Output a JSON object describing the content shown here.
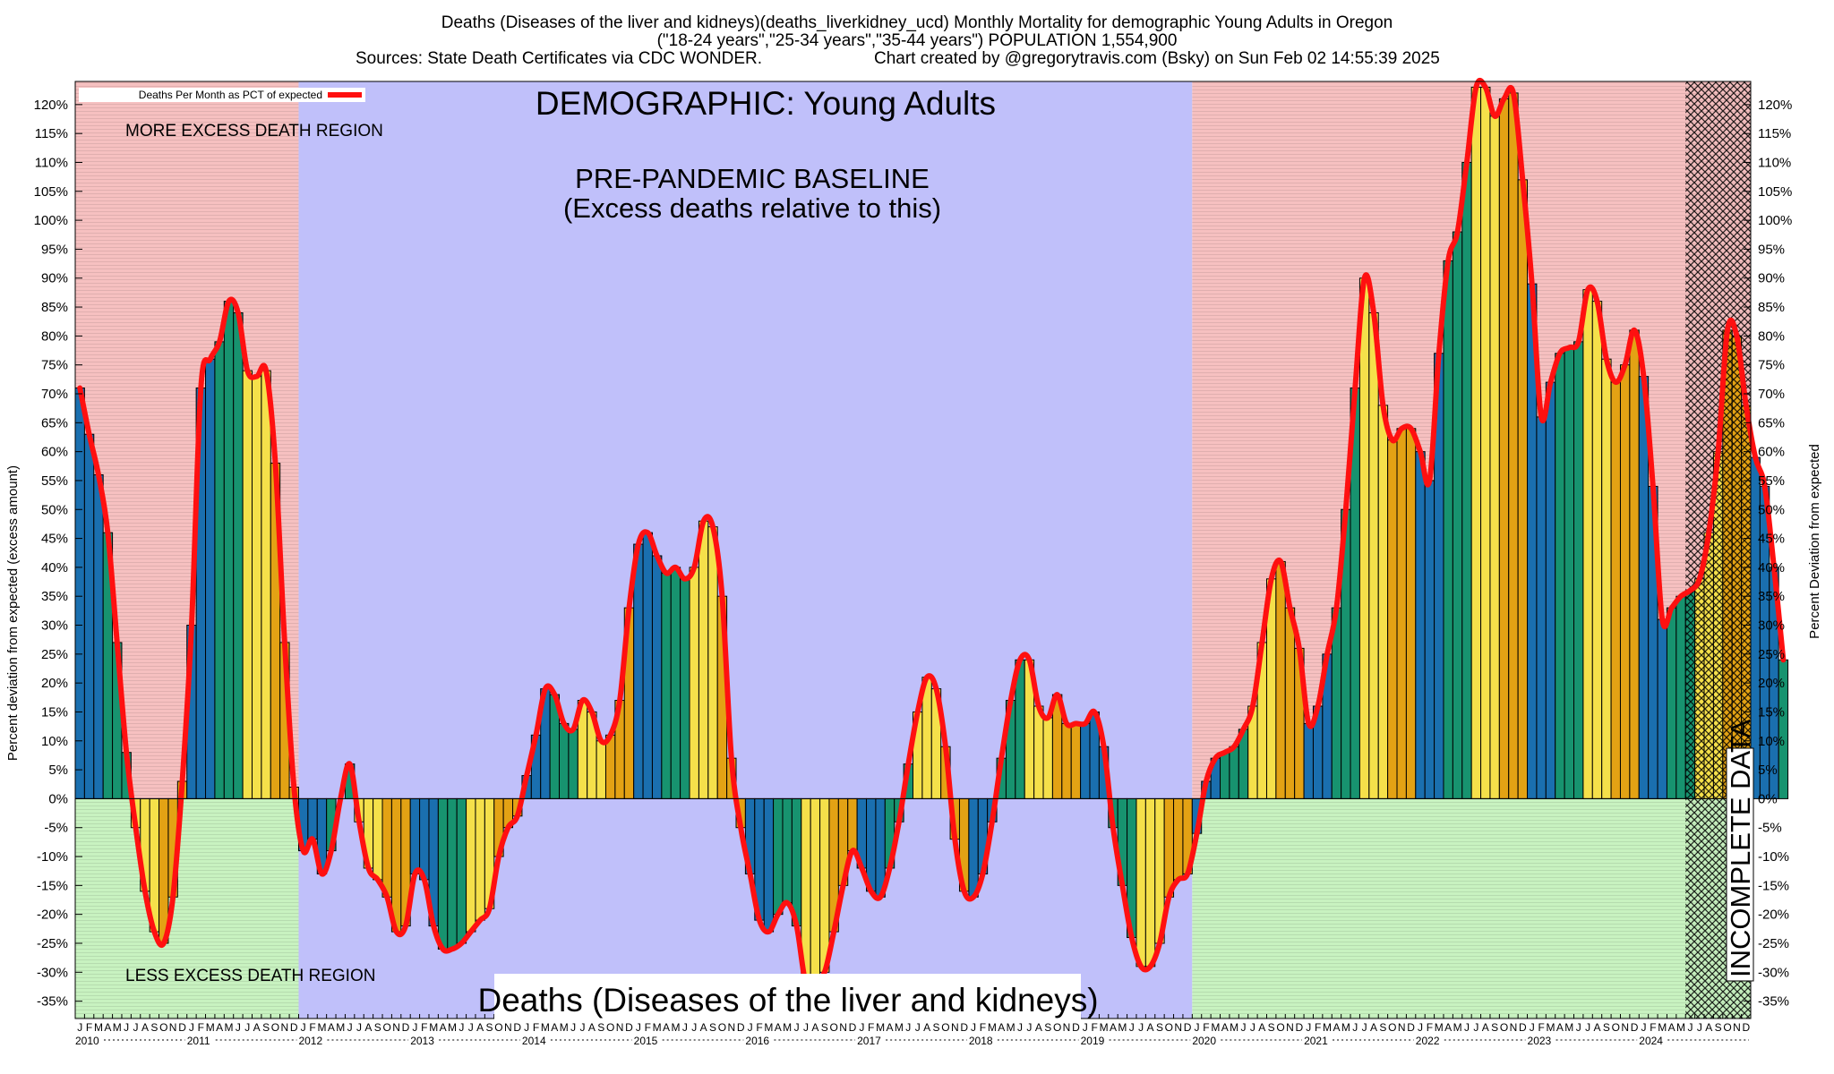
{
  "header": {
    "title_line1": "Deaths (Diseases of the liver and kidneys)(deaths_liverkidney_ucd) Monthly Mortality for demographic Young Adults in Oregon",
    "title_line2": "(\"18-24 years\",\"25-34 years\",\"35-44 years\") POPULATION 1,554,900",
    "title_line3_left": "Sources: State Death Certificates via CDC WONDER.",
    "title_line3_right": "Chart created by @gregorytravis.com (Bsky) on Sun Feb 02 14:55:39 2025"
  },
  "annotations": {
    "demographic": "DEMOGRAPHIC: Young Adults",
    "baseline_line1": "PRE-PANDEMIC BASELINE",
    "baseline_line2": "(Excess deaths relative to this)",
    "more_excess": "MORE EXCESS DEATH REGION",
    "less_excess": "LESS EXCESS DEATH REGION",
    "cause": "Deaths (Diseases of the liver and kidneys)",
    "incomplete": "INCOMPLETE DATA"
  },
  "colors": {
    "excess_region": "#f6c0c0",
    "less_region": "#c8f2c0",
    "baseline_region": "#c0c0fa",
    "incomplete_hatch": "#000000",
    "line": "#ff1010",
    "bar_q1": "#1a6faf",
    "bar_q2": "#17936f",
    "bar_q3": "#f5e04a",
    "bar_q4": "#e3a214"
  },
  "chart_data": {
    "type": "bar",
    "series_name": "Deaths Per Month as PCT of expected",
    "ylabel_left": "Percent deviation from expected (excess amount)",
    "ylabel_right": "Percent Deviation from expected",
    "ylim": [
      -38,
      124
    ],
    "yticks": [
      "-35%",
      "-30%",
      "-25%",
      "-20%",
      "-15%",
      "-10%",
      "-5%",
      "0%",
      "5%",
      "10%",
      "15%",
      "20%",
      "25%",
      "30%",
      "35%",
      "40%",
      "45%",
      "50%",
      "55%",
      "60%",
      "65%",
      "70%",
      "75%",
      "80%",
      "85%",
      "90%",
      "95%",
      "100%",
      "105%",
      "110%",
      "115%",
      "120%"
    ],
    "month_letters": [
      "J",
      "F",
      "M",
      "A",
      "M",
      "J",
      "J",
      "A",
      "S",
      "O",
      "N",
      "D"
    ],
    "years": [
      "2010",
      "2011",
      "2012",
      "2013",
      "2014",
      "2015",
      "2016",
      "2017",
      "2018",
      "2019",
      "2020",
      "2021",
      "2022",
      "2023",
      "2024"
    ],
    "start": "2010-01",
    "baseline_period": [
      "2012-01",
      "2019-12"
    ],
    "incomplete_from": "2024-06",
    "legend": "top-left",
    "values": [
      71,
      63,
      56,
      46,
      27,
      8,
      -5,
      -16,
      -23,
      -25,
      -17,
      3,
      30,
      71,
      76,
      79,
      86,
      84,
      74,
      73,
      74,
      58,
      27,
      2,
      -9,
      -7,
      -13,
      -9,
      0,
      6,
      -4,
      -12,
      -14,
      -17,
      -23,
      -22,
      -13,
      -14,
      -22,
      -26,
      -26,
      -25,
      -23,
      -21,
      -19,
      -10,
      -5,
      -3,
      4,
      11,
      19,
      18,
      13,
      12,
      17,
      15,
      10,
      11,
      17,
      33,
      44,
      46,
      42,
      39,
      40,
      38,
      40,
      48,
      47,
      35,
      7,
      -5,
      -13,
      -21,
      -23,
      -20,
      -18,
      -22,
      -32,
      -31,
      -30,
      -23,
      -15,
      -9,
      -12,
      -16,
      -17,
      -12,
      -4,
      6,
      15,
      21,
      19,
      9,
      -7,
      -16,
      -17,
      -13,
      -4,
      7,
      17,
      24,
      24,
      16,
      14,
      18,
      13,
      13,
      13,
      15,
      9,
      -5,
      -15,
      -24,
      -29,
      -29,
      -25,
      -17,
      -14,
      -13,
      -6,
      3,
      7,
      8,
      9,
      12,
      16,
      27,
      38,
      41,
      33,
      26,
      13,
      16,
      25,
      33,
      50,
      71,
      90,
      84,
      68,
      62,
      64,
      64,
      60,
      55,
      77,
      93,
      98,
      110,
      123,
      123,
      118,
      121,
      122,
      107,
      89,
      66,
      72,
      77,
      78,
      79,
      88,
      86,
      76,
      72,
      75,
      81,
      73,
      54,
      31,
      33,
      35,
      36,
      38,
      46,
      60,
      81,
      80,
      68,
      59,
      54,
      40,
      24
    ]
  }
}
